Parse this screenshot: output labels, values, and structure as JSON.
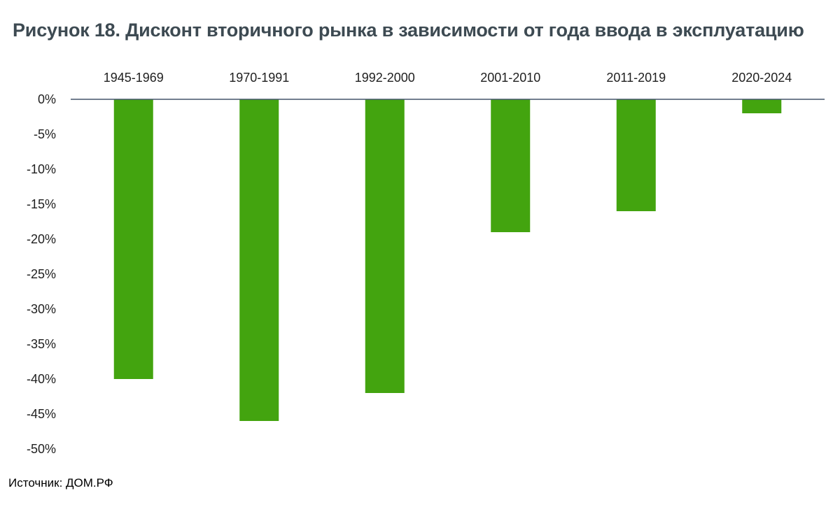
{
  "title": "Рисунок 18. Дисконт вторичного рынка в зависимости от года ввода в эксплуатацию",
  "source": "Источник: ДОМ.РФ",
  "colors": {
    "bar": "#43a40f",
    "axis": "#44546a",
    "title": "#3d4a52"
  },
  "chart_data": {
    "type": "bar",
    "categories": [
      "1945-1969",
      "1970-1991",
      "1992-2000",
      "2001-2010",
      "2011-2019",
      "2020-2024"
    ],
    "values": [
      -40,
      -46,
      -42,
      -19,
      -16,
      -2
    ],
    "ylim": [
      -50,
      0
    ],
    "yticks": [
      0,
      -5,
      -10,
      -15,
      -20,
      -25,
      -30,
      -35,
      -40,
      -45,
      -50
    ],
    "ytick_labels": [
      "0%",
      "-5%",
      "-10%",
      "-15%",
      "-20%",
      "-25%",
      "-30%",
      "-35%",
      "-40%",
      "-45%",
      "-50%"
    ],
    "category_axis_position": "top",
    "grid": false,
    "legend": "none",
    "xlabel": "",
    "ylabel": ""
  }
}
